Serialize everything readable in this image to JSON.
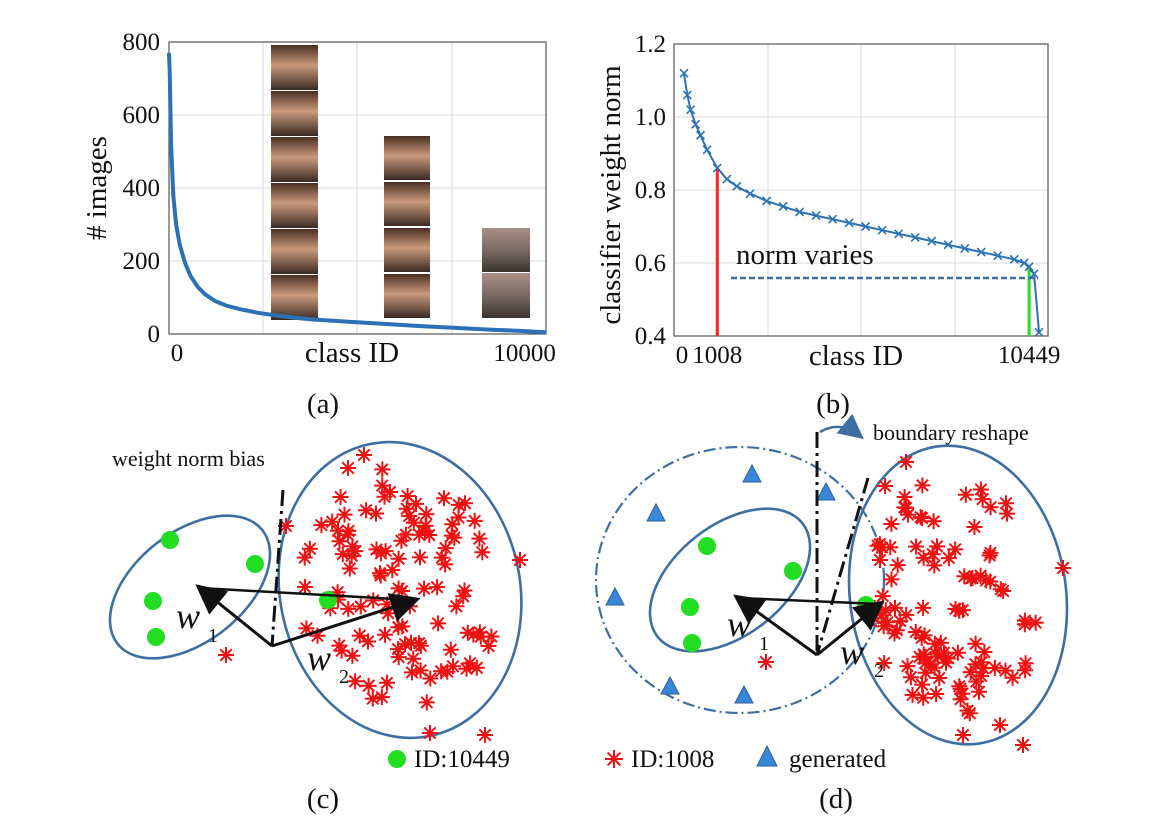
{
  "chart_data": [
    {
      "id": "a",
      "type": "line",
      "panel_label": "(a)",
      "xlabel": "class ID",
      "ylabel": "# images",
      "xlim": [
        0,
        10600
      ],
      "ylim": [
        0,
        800
      ],
      "yticks": [
        "0",
        "200",
        "400",
        "600",
        "800"
      ],
      "xticks": [
        "0",
        "10000"
      ],
      "x": [
        0,
        20,
        60,
        120,
        200,
        300,
        450,
        600,
        800,
        1000,
        1300,
        1600,
        2000,
        2500,
        3000,
        3500,
        4000,
        5000,
        6000,
        7000,
        8000,
        9000,
        10000,
        10600
      ],
      "values": [
        770,
        720,
        520,
        380,
        300,
        245,
        195,
        160,
        130,
        110,
        90,
        78,
        68,
        58,
        51,
        45,
        40,
        34,
        28,
        22,
        17,
        12,
        8,
        5
      ],
      "series_color": "#2a72b5"
    },
    {
      "id": "b",
      "type": "line",
      "panel_label": "(b)",
      "xlabel": "class ID",
      "ylabel": "classifier weight norm",
      "xlim": [
        0,
        10900
      ],
      "ylim": [
        0.4,
        1.2
      ],
      "yticks": [
        "0.4",
        "0.6",
        "0.8",
        "1.0",
        "1.2"
      ],
      "xticks": [
        "0",
        "1008",
        "10449"
      ],
      "x": [
        0,
        100,
        200,
        350,
        500,
        700,
        1008,
        1300,
        1600,
        2000,
        2500,
        3000,
        3500,
        4000,
        4500,
        5000,
        5500,
        6000,
        6500,
        7000,
        7500,
        8000,
        8500,
        9000,
        9500,
        10000,
        10300,
        10449,
        10600,
        10750
      ],
      "values": [
        1.12,
        1.06,
        1.02,
        0.98,
        0.95,
        0.91,
        0.86,
        0.83,
        0.81,
        0.79,
        0.77,
        0.755,
        0.74,
        0.73,
        0.72,
        0.71,
        0.7,
        0.69,
        0.68,
        0.67,
        0.66,
        0.65,
        0.64,
        0.63,
        0.62,
        0.61,
        0.6,
        0.59,
        0.57,
        0.41
      ],
      "markers": [
        {
          "class_id": 1008,
          "color": "#ff2020"
        },
        {
          "class_id": 10449,
          "color": "#22dd22"
        }
      ],
      "annotation": "norm varies",
      "series_color": "#2a72b5"
    }
  ],
  "diagrams": {
    "c": {
      "panel_label": "(c)",
      "annotation": "weight norm bias",
      "w1": "w",
      "w1_sub": "1",
      "w2": "w",
      "w2_sub": "2"
    },
    "d": {
      "panel_label": "(d)",
      "annotation": "boundary reshape",
      "w1": "w",
      "w1_sub": "1",
      "w2": "w",
      "w2_sub": "2"
    }
  },
  "legend": [
    {
      "label": "ID:10449",
      "symbol": "green-dot",
      "color": "#22dd22"
    },
    {
      "label": "ID:1008",
      "symbol": "red-asterisk",
      "color": "#ee1111"
    },
    {
      "label": "generated",
      "symbol": "blue-triangle",
      "color": "#3a86d8"
    }
  ]
}
